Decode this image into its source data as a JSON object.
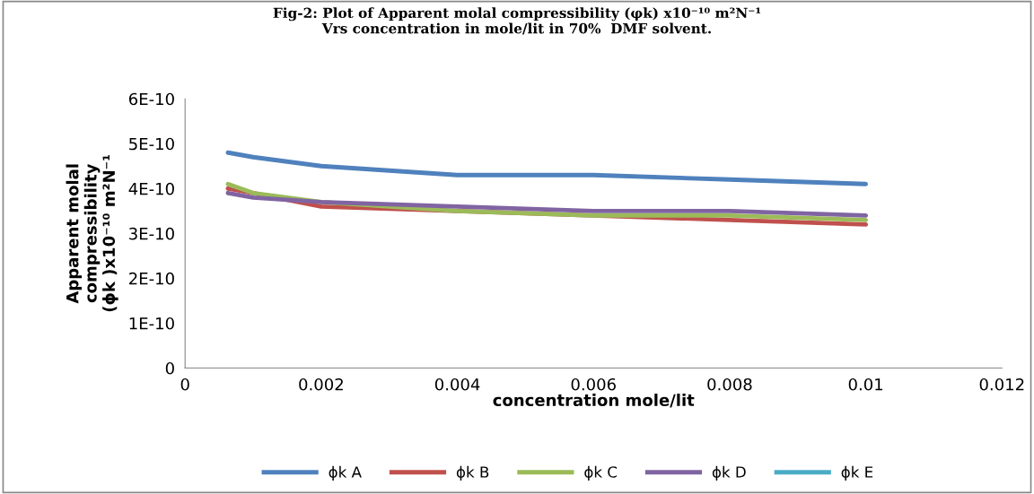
{
  "chart_data": {
    "type": "line",
    "title": "Fig-2: Plot of Apparent molal compressibility (φk) x10⁻¹⁰ m²N⁻¹\nVrs concentration in mole/lit in 70%  DMF solvent.",
    "xlabel": "concentration mole/lit",
    "ylabel": "Apparent molal\ncompressibility\n(ϕk )x10⁻¹⁰ m²N⁻¹",
    "x": [
      0.00063,
      0.001,
      0.002,
      0.004,
      0.006,
      0.008,
      0.01
    ],
    "series": [
      {
        "name": "ϕk A",
        "color": "#4f81bd",
        "values": [
          4.8e-10,
          4.7e-10,
          4.5e-10,
          4.3e-10,
          4.3e-10,
          4.2e-10,
          4.1e-10
        ]
      },
      {
        "name": "ϕk B",
        "color": "#c0504d",
        "values": [
          4e-10,
          3.9e-10,
          3.6e-10,
          3.5e-10,
          3.4e-10,
          3.3e-10,
          3.2e-10
        ]
      },
      {
        "name": "ϕk C",
        "color": "#9bbb59",
        "values": [
          4.1e-10,
          3.9e-10,
          3.7e-10,
          3.5e-10,
          3.4e-10,
          3.4e-10,
          3.3e-10
        ]
      },
      {
        "name": "ϕk D",
        "color": "#8064a2",
        "values": [
          3.9e-10,
          3.8e-10,
          3.7e-10,
          3.6e-10,
          3.5e-10,
          3.5e-10,
          3.4e-10
        ]
      },
      {
        "name": "ϕk E",
        "color": "#4bacc6",
        "values": [
          null,
          null,
          null,
          null,
          null,
          null,
          null
        ]
      }
    ],
    "xlim": [
      0,
      0.012
    ],
    "xticks": [
      0,
      0.002,
      0.004,
      0.006,
      0.008,
      0.01,
      0.012
    ],
    "ylim": [
      0,
      6e-10
    ],
    "yticks": [
      0,
      {
        "value": 1e-10,
        "label": "1E-10"
      },
      {
        "value": 2e-10,
        "label": "2E-10"
      },
      {
        "value": 3e-10,
        "label": "3E-10"
      },
      {
        "value": 4e-10,
        "label": "4E-10"
      },
      {
        "value": 5e-10,
        "label": "5E-10"
      },
      {
        "value": 6e-10,
        "label": "6E-10"
      }
    ],
    "grid": false,
    "legend": "bottom",
    "marker": "none",
    "line_style": "solid"
  }
}
